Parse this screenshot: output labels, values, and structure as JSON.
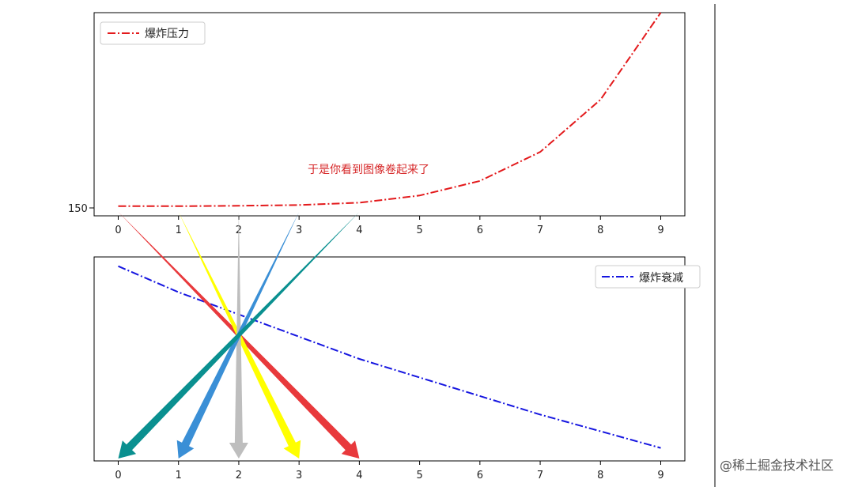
{
  "chart_data": [
    {
      "type": "line",
      "title": "",
      "xlabel": "",
      "ylabel": "",
      "x": [
        0,
        1,
        2,
        3,
        4,
        5,
        6,
        7,
        8,
        9
      ],
      "xlim": [
        -0.4,
        9.4
      ],
      "ylim": [
        -0.05,
        1.0
      ],
      "ytick_label": "150",
      "legend": "top-left",
      "grid": false,
      "series": [
        {
          "name": "爆炸压力",
          "color": "#e31a1c",
          "style": "dash-dot",
          "values": [
            0.0,
            0.0,
            0.002,
            0.006,
            0.018,
            0.055,
            0.13,
            0.28,
            0.55,
            1.0
          ]
        }
      ]
    },
    {
      "type": "line",
      "title": "",
      "xlabel": "",
      "ylabel": "",
      "x": [
        0,
        1,
        2,
        3,
        4,
        5,
        6,
        7,
        8,
        9
      ],
      "xlim": [
        -0.4,
        9.4
      ],
      "ylim": [
        -0.05,
        1.05
      ],
      "legend": "top-right",
      "grid": false,
      "series": [
        {
          "name": "爆炸衰减",
          "color": "#1515e0",
          "style": "dash-dot",
          "values": [
            1.0,
            0.86,
            0.74,
            0.62,
            0.5,
            0.4,
            0.3,
            0.2,
            0.11,
            0.02
          ]
        }
      ]
    }
  ],
  "annotation": {
    "text": "于是你看到图像卷起来了",
    "color": "#d62728"
  },
  "arrows": [
    {
      "from": 0,
      "to": 4,
      "color": "#e8393c"
    },
    {
      "from": 1,
      "to": 3,
      "color": "#ffff00"
    },
    {
      "from": 2,
      "to": 2,
      "color": "#bebebe"
    },
    {
      "from": 3,
      "to": 1,
      "color": "#3a8fd6"
    },
    {
      "from": 4,
      "to": 0,
      "color": "#0a9090"
    }
  ],
  "watermark": "@稀土掘金技术社区"
}
